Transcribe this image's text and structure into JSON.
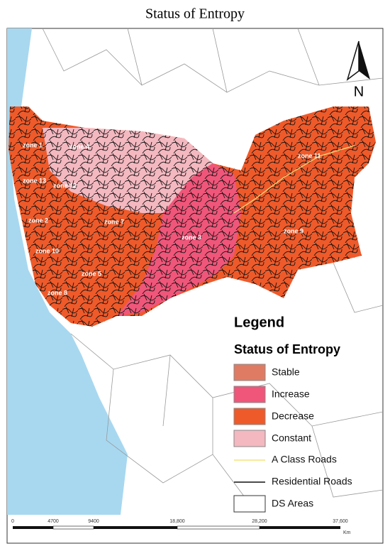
{
  "title": "Status of Entropy",
  "north": "N",
  "zones": [
    "zone 1",
    "zone 4",
    "zone 13",
    "zone 12",
    "zone 11",
    "zone 2",
    "zone 7",
    "zone 3",
    "zone 9",
    "zone 10",
    "zone 5",
    "zone 8"
  ],
  "legend": {
    "title": "Legend",
    "subtitle": "Status of Entropy",
    "items": [
      "Stable",
      "Increase",
      "Decrease",
      "Constant",
      "A Class Roads",
      "Residential Roads",
      "DS Areas"
    ]
  },
  "scale_bar": {
    "labels": [
      "0",
      "4700",
      "9400",
      "18,800",
      "28,200",
      "37,600"
    ],
    "unit": "Km"
  }
}
